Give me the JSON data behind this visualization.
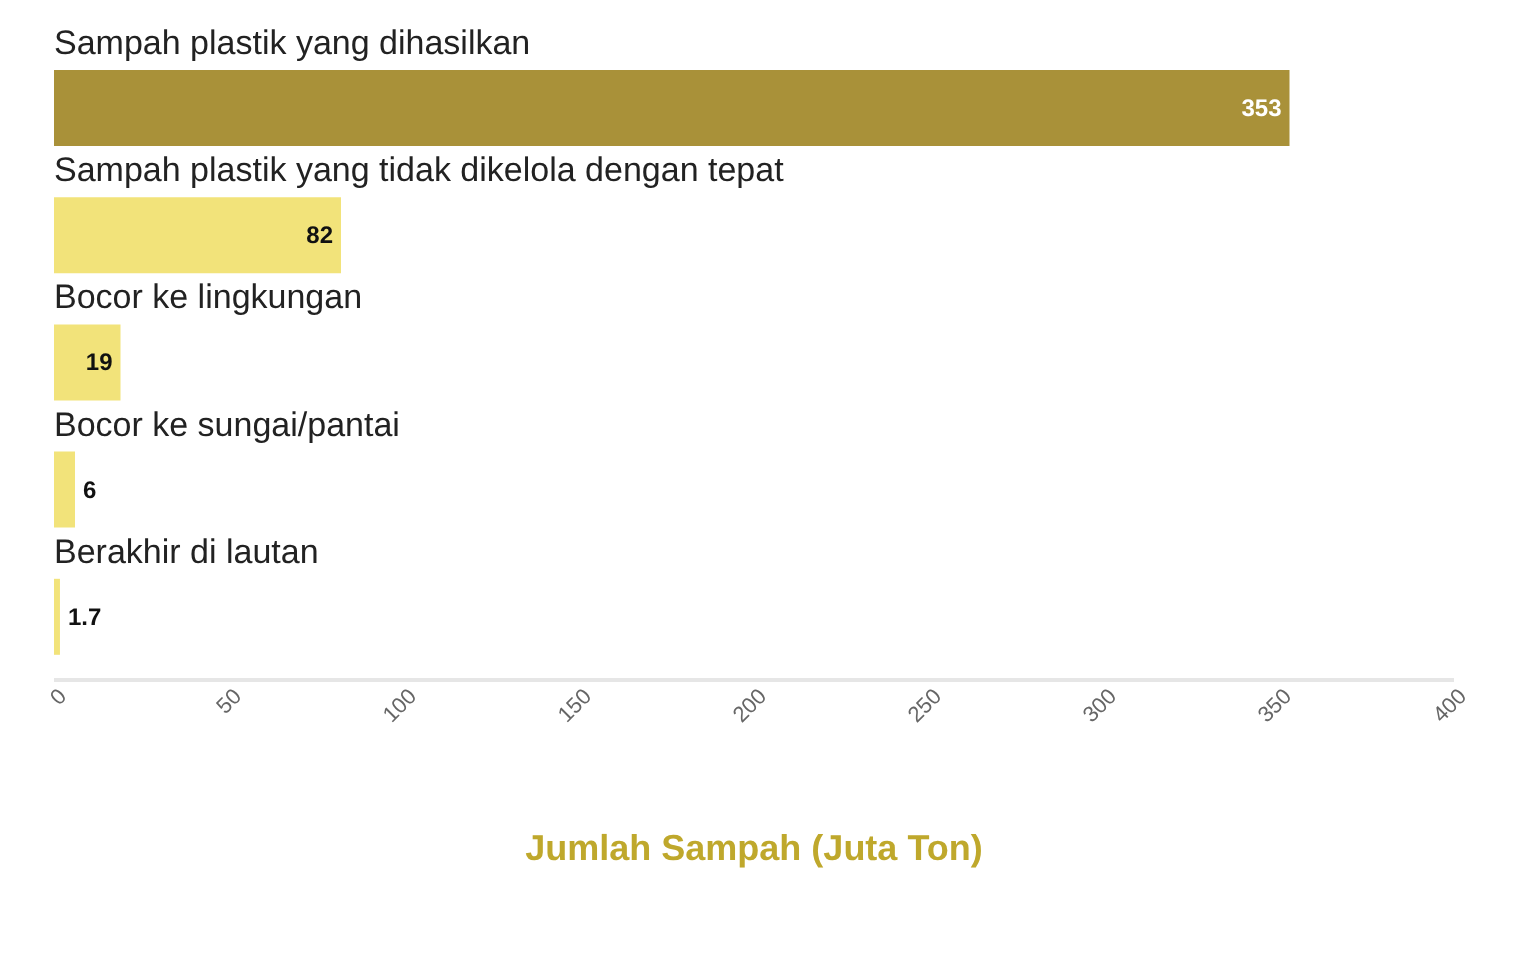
{
  "chart_data": {
    "type": "bar",
    "orientation": "horizontal",
    "categories": [
      "Sampah plastik yang dihasilkan",
      "Sampah plastik yang tidak dikelola dengan tepat",
      "Bocor ke lingkungan",
      "Bocor ke sungai/pantai",
      "Berakhir di lautan"
    ],
    "values": [
      353,
      82,
      19,
      6,
      1.7
    ],
    "colors": [
      "#a99139",
      "#f2e37a",
      "#f2e37a",
      "#f2e37a",
      "#f2e37a"
    ],
    "xlim": [
      0,
      400
    ],
    "xticks": [
      0,
      50,
      100,
      150,
      200,
      250,
      300,
      350,
      400
    ],
    "xlabel": "Jumlah Sampah (Juta Ton)",
    "data_labels": true
  }
}
